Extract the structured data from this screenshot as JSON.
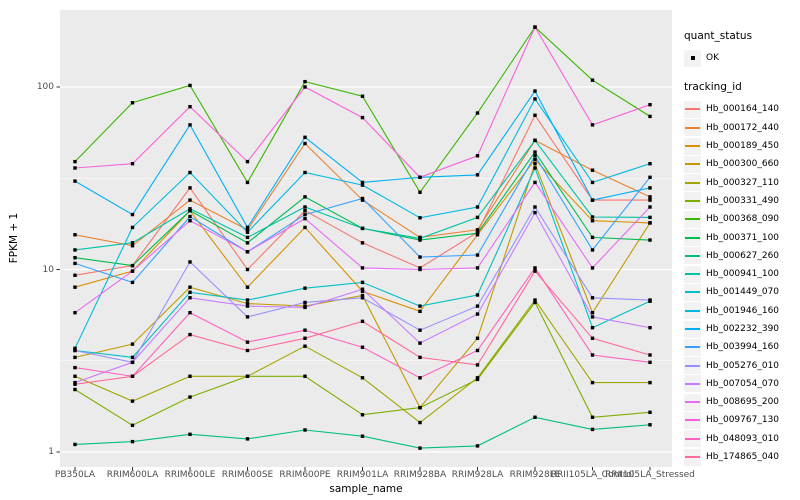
{
  "legend": {
    "quant_status_title": "quant_status",
    "quant_status_items": [
      "OK"
    ],
    "tracking_id_title": "tracking_id"
  },
  "colors": {
    "panel_bg": "#EBEBEB",
    "grid": "#FFFFFF",
    "point": "#000000",
    "tick_label": "#4D4D4D",
    "axis_title": "#000000",
    "legend_key_bg": "#F2F2F2"
  },
  "chart_data": {
    "type": "line",
    "title": "",
    "xlabel": "sample_name",
    "ylabel": "FPKM + 1",
    "y_scale": "log10",
    "ylim": [
      0.83,
      300
    ],
    "y_ticks": [
      1,
      10,
      100
    ],
    "y_minor_ticks": [
      3.162,
      31.62
    ],
    "grid": true,
    "legend_position": "right",
    "point_shape": "small-black-square",
    "categories": [
      "PB350LA",
      "RRIM600LA",
      "RRIM600LE",
      "RRIM600SE",
      "RRIM600PE",
      "RRIM901LA",
      "RRIM928BA",
      "RRIM928LA",
      "RRIM928LE",
      "RRII105LA_Control",
      "RRII105LA_Stressed"
    ],
    "series": [
      {
        "name": "Hb_000164_140",
        "color": "#F8766D",
        "values": [
          9.3,
          10.5,
          28,
          10,
          21,
          14,
          10.2,
          16,
          70,
          24,
          24
        ]
      },
      {
        "name": "Hb_000172_440",
        "color": "#EA8331",
        "values": [
          15.5,
          13.5,
          24,
          16.5,
          49,
          24,
          15,
          16.5,
          51,
          35,
          25
        ]
      },
      {
        "name": "Hb_000189_450",
        "color": "#D89000",
        "values": [
          8.0,
          9.8,
          21,
          8.0,
          17,
          7.6,
          5.9,
          15.5,
          40,
          18.5,
          18
        ]
      },
      {
        "name": "Hb_000300_660",
        "color": "#C09B00",
        "values": [
          3.3,
          3.9,
          8.0,
          6.5,
          6.3,
          7.2,
          1.75,
          4.2,
          38,
          5.8,
          18
        ]
      },
      {
        "name": "Hb_000327_110",
        "color": "#A3A500",
        "values": [
          2.6,
          1.9,
          2.6,
          2.6,
          3.8,
          2.55,
          1.45,
          2.55,
          6.8,
          2.4,
          2.4
        ]
      },
      {
        "name": "Hb_000331_490",
        "color": "#7CAE00",
        "values": [
          2.2,
          1.4,
          2.0,
          2.6,
          2.6,
          1.6,
          1.75,
          2.5,
          6.6,
          1.55,
          1.65
        ]
      },
      {
        "name": "Hb_000368_090",
        "color": "#39B600",
        "values": [
          39,
          82,
          102,
          30,
          107,
          89,
          26.5,
          72,
          213,
          109,
          69
        ]
      },
      {
        "name": "Hb_000371_100",
        "color": "#00BB4E",
        "values": [
          11.6,
          10.5,
          21,
          14,
          25,
          16.8,
          14.5,
          15.8,
          44,
          15,
          14.5
        ]
      },
      {
        "name": "Hb_000627_260",
        "color": "#00BF7D",
        "values": [
          1.1,
          1.14,
          1.25,
          1.18,
          1.32,
          1.22,
          1.05,
          1.08,
          1.55,
          1.33,
          1.41
        ]
      },
      {
        "name": "Hb_000941_100",
        "color": "#00C1A3",
        "values": [
          12.8,
          14,
          21.5,
          15,
          22,
          16.8,
          14.8,
          19.3,
          51,
          19.4,
          19.3
        ]
      },
      {
        "name": "Hb_001449_070",
        "color": "#00BFC4",
        "values": [
          3.6,
          3.3,
          7.5,
          6.8,
          7.9,
          8.5,
          6.3,
          7.25,
          36,
          4.8,
          6.7
        ]
      },
      {
        "name": "Hb_001946_160",
        "color": "#00BAE0",
        "values": [
          3.7,
          17,
          34,
          16,
          34,
          29,
          19.2,
          22,
          86,
          30,
          38
        ]
      },
      {
        "name": "Hb_002232_390",
        "color": "#00B0F6",
        "values": [
          30.5,
          20,
          62,
          17,
          53,
          30,
          32,
          33,
          95,
          24,
          28
        ]
      },
      {
        "name": "Hb_003994_160",
        "color": "#35A2FF",
        "values": [
          10.8,
          8.5,
          19.5,
          12.5,
          20,
          24.5,
          11.7,
          12,
          42,
          12.8,
          32
        ]
      },
      {
        "name": "Hb_005276_010",
        "color": "#9590FF",
        "values": [
          3.6,
          3.1,
          11,
          5.5,
          6.6,
          7.0,
          4.65,
          6.3,
          22,
          7.0,
          6.8
        ]
      },
      {
        "name": "Hb_007054_070",
        "color": "#C77CFF",
        "values": [
          2.4,
          3.1,
          7.0,
          6.3,
          6.2,
          7.8,
          3.95,
          5.7,
          20.5,
          5.5,
          4.8
        ]
      },
      {
        "name": "Hb_008695_200",
        "color": "#E76BF3",
        "values": [
          5.8,
          9.8,
          18.5,
          12.5,
          19,
          10.2,
          10,
          10.2,
          30,
          10.2,
          22
        ]
      },
      {
        "name": "Hb_009767_130",
        "color": "#FA62DB",
        "values": [
          36,
          38,
          78,
          39,
          100,
          68,
          32,
          42,
          213,
          62,
          80
        ]
      },
      {
        "name": "Hb_048093_010",
        "color": "#FF62BC",
        "values": [
          2.9,
          2.6,
          5.8,
          4.0,
          4.65,
          3.75,
          2.55,
          3.6,
          10.2,
          3.4,
          3.1
        ]
      },
      {
        "name": "Hb_174865_040",
        "color": "#FF6A98",
        "values": [
          2.35,
          2.6,
          4.4,
          3.6,
          4.2,
          5.2,
          3.3,
          3.0,
          9.8,
          4.2,
          3.4
        ]
      }
    ]
  }
}
